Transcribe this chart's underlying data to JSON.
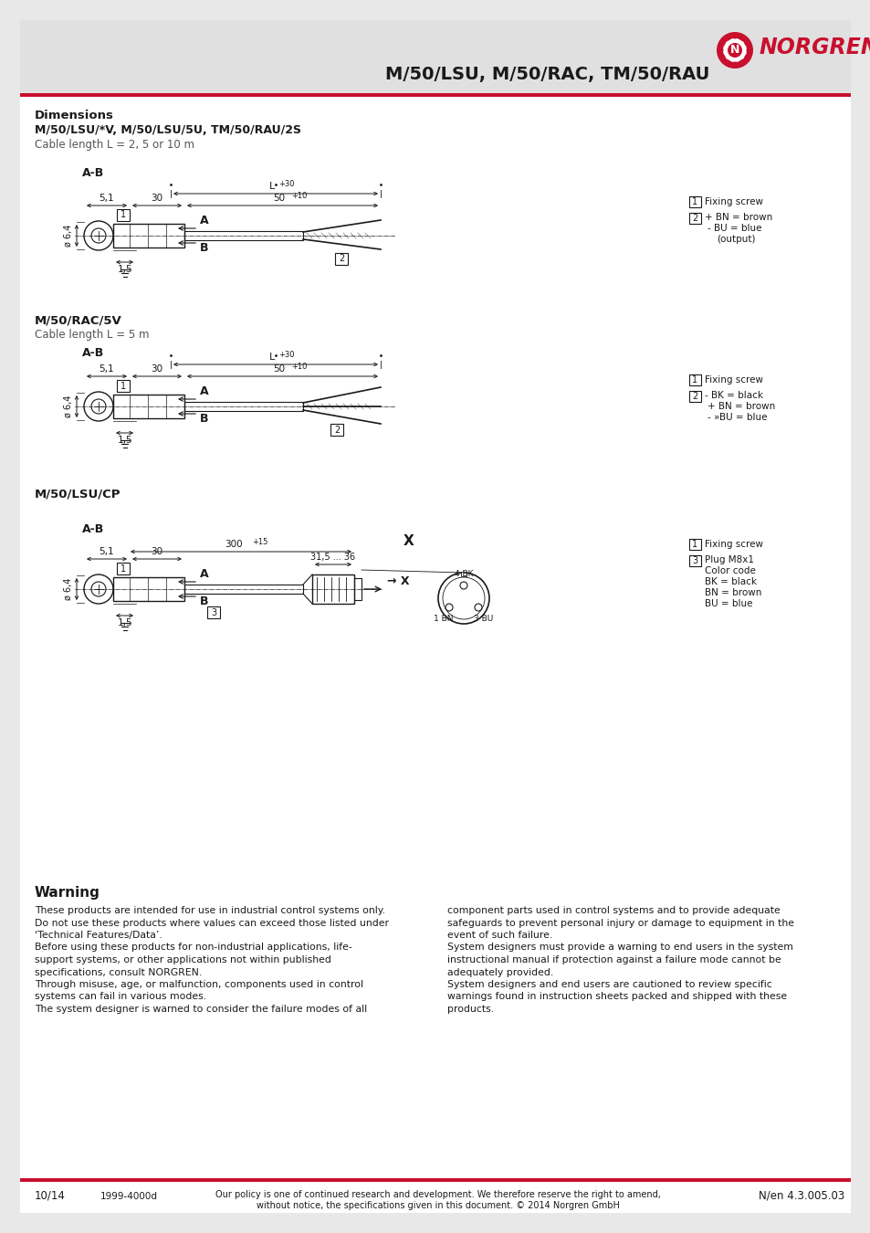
{
  "page_bg": "#e8e8e8",
  "content_bg": "#ffffff",
  "red_color": "#c8102e",
  "dark_text": "#1a1a1a",
  "header_title": "M/50/LSU, M/50/RAC, TM/50/RAU",
  "section1_title": "Dimensions",
  "section1_subtitle": "M/50/LSU/*V, M/50/LSU/5U, TM/50/RAU/2S",
  "section1_cable": "Cable length L = 2, 5 or 10 m",
  "section2_title": "M/50/RAC/5V",
  "section2_cable": "Cable length L = 5 m",
  "section3_title": "M/50/LSU/CP",
  "warning_title": "Warning",
  "warning_col1": "These products are intended for use in industrial control systems only.\nDo not use these products where values can exceed those listed under\n‘Technical Features/Data’.\nBefore using these products for non-industrial applications, life-\nsupport systems, or other applications not within published\nspecifications, consult NORGREN.\nThrough misuse, age, or malfunction, components used in control\nsystems can fail in various modes.\nThe system designer is warned to consider the failure modes of all",
  "warning_col2": "component parts used in control systems and to provide adequate\nsafeguards to prevent personal injury or damage to equipment in the\nevent of such failure.\nSystem designers must provide a warning to end users in the system\ninstructional manual if protection against a failure mode cannot be\nadequately provided.\nSystem designers and end users are cautioned to review specific\nwarnings found in instruction sheets packed and shipped with these\nproducts.",
  "footer_left": "10/14",
  "footer_date": "1999-4000d",
  "footer_center": "Our policy is one of continued research and development. We therefore reserve the right to amend,\nwithout notice, the specifications given in this document. © 2014 Norgren GmbH",
  "footer_right": "N/en 4.3.005.03"
}
